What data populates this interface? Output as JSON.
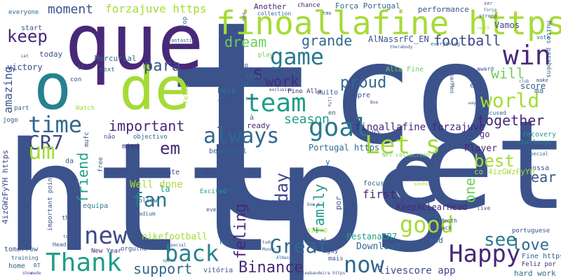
{
  "words": [
    {
      "text": "t",
      "color": "#3b528b"
    },
    {
      "text": "co",
      "color": "#3b528b"
    },
    {
      "text": "https",
      "color": "#3b528b"
    },
    {
      "text": "que",
      "color": "#482878"
    },
    {
      "text": "finoallafine https",
      "color": "#a5db36"
    },
    {
      "text": "o",
      "color": "#26828e"
    },
    {
      "text": "de",
      "color": "#a5db36"
    },
    {
      "text": "e",
      "color": "#3b528b"
    },
    {
      "text": "et",
      "color": "#3b528b"
    },
    {
      "text": "win",
      "color": "#482878"
    },
    {
      "text": "game",
      "color": "#2a788e"
    },
    {
      "text": "team",
      "color": "#1f9e89"
    },
    {
      "text": "keep",
      "color": "#482878"
    },
    {
      "text": "dream",
      "color": "#6ece58"
    },
    {
      "text": "grande",
      "color": "#31688e"
    },
    {
      "text": "football",
      "color": "#3e4a89"
    },
    {
      "text": "world",
      "color": "#a5db36"
    },
    {
      "text": "will",
      "color": "#6ece58"
    },
    {
      "text": "time",
      "color": "#31688e"
    },
    {
      "text": "goal",
      "color": "#2a788e"
    },
    {
      "text": "Let s",
      "color": "#a5db36"
    },
    {
      "text": "CR7",
      "color": "#3e4a89"
    },
    {
      "text": "always",
      "color": "#31688e"
    },
    {
      "text": "important",
      "color": "#482878"
    },
    {
      "text": "um",
      "color": "#a5db36"
    },
    {
      "text": "em",
      "color": "#482878"
    },
    {
      "text": "new",
      "color": "#3e4a89"
    },
    {
      "text": "fan",
      "color": "#2a788e"
    },
    {
      "text": "Thank",
      "color": "#1f9e89"
    },
    {
      "text": "back",
      "color": "#26828e"
    },
    {
      "text": "Great",
      "color": "#31688e"
    },
    {
      "text": "good",
      "color": "#a5db36"
    },
    {
      "text": "Happy",
      "color": "#482878"
    },
    {
      "text": "now",
      "color": "#31688e"
    },
    {
      "text": "Binance",
      "color": "#482878"
    },
    {
      "text": "see",
      "color": "#2a788e"
    },
    {
      "text": "love",
      "color": "#31688e"
    },
    {
      "text": "year",
      "color": "#3b528b"
    },
    {
      "text": "best",
      "color": "#a5db36"
    },
    {
      "text": "together",
      "color": "#482878"
    },
    {
      "text": "season",
      "color": "#1f9e89"
    },
    {
      "text": "proud",
      "color": "#31688e"
    },
    {
      "text": "work",
      "color": "#482878"
    },
    {
      "text": "para",
      "color": "#3b528b"
    },
    {
      "text": "moment",
      "color": "#3b528b"
    },
    {
      "text": "forzajuve https",
      "color": "#a5db36"
    },
    {
      "text": "amazing",
      "color": "#3b528b"
    },
    {
      "text": "friend",
      "color": "#1f9e89"
    },
    {
      "text": "day",
      "color": "#3e4a89"
    },
    {
      "text": "family",
      "color": "#1f9e89"
    },
    {
      "text": "feling",
      "color": "#482878"
    },
    {
      "text": "support",
      "color": "#31688e"
    },
    {
      "text": "s",
      "color": "#482878"
    },
    {
      "text": "one",
      "color": "#6ece58"
    },
    {
      "text": "stay",
      "color": "#3e4a89"
    },
    {
      "text": "first",
      "color": "#482878"
    },
    {
      "text": "Well done",
      "color": "#a5db36"
    },
    {
      "text": "livescore app",
      "color": "#3e4a89"
    },
    {
      "text": "Download",
      "color": "#31688e"
    },
    {
      "text": "finoallafine forzajuve",
      "color": "#482878"
    },
    {
      "text": "Portugal https",
      "color": "#31688e"
    },
    {
      "text": "Player",
      "color": "#482878"
    },
    {
      "text": "KeepAClearHead",
      "color": "#482878"
    },
    {
      "text": "PestanaCR7",
      "color": "#1f9e89"
    },
    {
      "text": "nikefootball",
      "color": "#a5db36"
    },
    {
      "text": "hard work",
      "color": "#31688e"
    },
    {
      "text": "score",
      "color": "#3b528b"
    },
    {
      "text": "AlNassrFC_EN",
      "color": "#3b528b"
    },
    {
      "text": "Força Portugal",
      "color": "#31688e"
    },
    {
      "text": "Vamos",
      "color": "#3e4a89"
    },
    {
      "text": "Another",
      "color": "#482878"
    },
    {
      "text": "performance",
      "color": "#3b528b"
    },
    {
      "text": "Mercurial",
      "color": "#31688e"
    },
    {
      "text": "victory",
      "color": "#3e4a89"
    },
    {
      "text": "today",
      "color": "#3b528b"
    },
    {
      "text": "start",
      "color": "#3b528b"
    },
    {
      "text": "everyone",
      "color": "#31688e"
    },
    {
      "text": "help",
      "color": "#2a788e"
    },
    {
      "text": "ready",
      "color": "#482878"
    },
    {
      "text": "beautiful",
      "color": "#31688e"
    },
    {
      "text": "mind",
      "color": "#482878"
    },
    {
      "text": "celebrate",
      "color": "#3e4a89"
    },
    {
      "text": "equipa",
      "color": "#2a788e"
    },
    {
      "text": "Excited",
      "color": "#1f9e89"
    },
    {
      "text": "focus",
      "color": "#31688e"
    },
    {
      "text": "recovery",
      "color": "#1f9e89"
    },
    {
      "text": "challenge",
      "color": "#26828e"
    },
    {
      "text": "nossa",
      "color": "#3b528b"
    },
    {
      "text": "muito",
      "color": "#31688e"
    },
    {
      "text": "Fino Alla",
      "color": "#482878"
    },
    {
      "text": "Alla Fine",
      "color": "#6ece58"
    },
    {
      "text": "sempre",
      "color": "#3b528b"
    },
    {
      "text": "next",
      "color": "#31688e"
    },
    {
      "text": "play",
      "color": "#6ece58"
    },
    {
      "text": "clear",
      "color": "#2a788e"
    },
    {
      "text": "tomorrow",
      "color": "#3b528b"
    },
    {
      "text": "home",
      "color": "#31688e"
    },
    {
      "text": "New Year",
      "color": "#482878"
    },
    {
      "text": "orgulho",
      "color": "#3b528b"
    },
    {
      "text": "vitória",
      "color": "#3b528b"
    },
    {
      "text": "mais",
      "color": "#3b528b"
    },
    {
      "text": "end",
      "color": "#31688e"
    },
    {
      "text": "Fine https",
      "color": "#31688e"
    },
    {
      "text": "Feliz por",
      "color": "#482878"
    },
    {
      "text": "portuguese",
      "color": "#3b528b"
    },
    {
      "text": "every",
      "color": "#3b528b"
    },
    {
      "text": "stadium",
      "color": "#31688e"
    },
    {
      "text": "training",
      "color": "#31688e"
    },
    {
      "text": "Head",
      "color": "#3b528b"
    },
    {
      "text": "4izGWzFyYH https",
      "color": "#3e4a89"
    },
    {
      "text": "co 4izGWzFyYH",
      "color": "#a5db36"
    },
    {
      "text": "SIXPAD",
      "color": "#a5db36"
    },
    {
      "text": "Month",
      "color": "#3b528b"
    },
    {
      "text": "track",
      "color": "#3b528b"
    },
    {
      "text": "live",
      "color": "#3b528b"
    },
    {
      "text": "amp",
      "color": "#3b528b"
    },
    {
      "text": "la",
      "color": "#1f9e89"
    },
    {
      "text": "un",
      "color": "#3e4a89"
    },
    {
      "text": "por",
      "color": "#3b528b"
    },
    {
      "text": "na",
      "color": "#31688e"
    },
    {
      "text": "rumo ao",
      "color": "#3b528b"
    },
    {
      "text": "NFT",
      "color": "#31688e"
    },
    {
      "text": "Feliz",
      "color": "#a5db36"
    },
    {
      "text": "con",
      "color": "#3b528b"
    },
    {
      "text": "il",
      "color": "#3b528b"
    },
    {
      "text": "top",
      "color": "#31688e"
    },
    {
      "text": "chance",
      "color": "#482878"
    },
    {
      "text": "el",
      "color": "#3b528b"
    },
    {
      "text": "ma",
      "color": "#31688e"
    },
    {
      "text": "go",
      "color": "#482878"
    },
    {
      "text": "take",
      "color": "#3b528b"
    },
    {
      "text": "NFT collection",
      "color": "#6ece58"
    },
    {
      "text": "important point",
      "color": "#3b528b"
    },
    {
      "text": "da",
      "color": "#31688e"
    },
    {
      "text": "thing",
      "color": "#3b528b"
    },
    {
      "text": "Follow",
      "color": "#31688e"
    },
    {
      "text": "mufc",
      "color": "#3b528b"
    },
    {
      "text": "free",
      "color": "#31688e"
    },
    {
      "text": "não",
      "color": "#3b528b"
    },
    {
      "text": "objectivo",
      "color": "#31688e"
    },
    {
      "text": "jogo",
      "color": "#3b528b"
    },
    {
      "text": "Watch",
      "color": "#a5db36"
    },
    {
      "text": "part",
      "color": "#31688e"
    },
    {
      "text": "y",
      "color": "#31688e"
    },
    {
      "text": "us",
      "color": "#3b528b"
    },
    {
      "text": "en",
      "color": "#3b528b"
    },
    {
      "text": "é",
      "color": "#3b528b"
    },
    {
      "text": "à",
      "color": "#31688e"
    },
    {
      "text": "guy",
      "color": "#3b528b"
    },
    {
      "text": "RT",
      "color": "#31688e"
    },
    {
      "text": "come",
      "color": "#3b528b"
    },
    {
      "text": "sonho",
      "color": "#a5db36"
    },
    {
      "text": "especial",
      "color": "#31688e"
    },
    {
      "text": "forward",
      "color": "#3b528b"
    },
    {
      "text": "focused",
      "color": "#31688e"
    },
    {
      "text": "award",
      "color": "#3b528b"
    },
    {
      "text": "vote",
      "color": "#31688e"
    },
    {
      "text": "Muitos parabéns",
      "color": "#31688e"
    },
    {
      "text": "make",
      "color": "#3b528b"
    },
    {
      "text": "club",
      "color": "#31688e"
    },
    {
      "text": "ClearMen",
      "color": "#3b528b"
    },
    {
      "text": "everything",
      "color": "#31688e"
    },
    {
      "text": "strong",
      "color": "#3b528b"
    },
    {
      "text": "reach",
      "color": "#a5db36"
    },
    {
      "text": "ser",
      "color": "#3b528b"
    },
    {
      "text": "Força",
      "color": "#31688e"
    },
    {
      "text": "tmo",
      "color": "#3b528b"
    },
    {
      "text": "collection",
      "color": "#31688e"
    },
    {
      "text": "nós",
      "color": "#3b528b"
    },
    {
      "text": "Fantastic",
      "color": "#31688e"
    },
    {
      "text": "Let",
      "color": "#3b528b"
    },
    {
      "text": "exclusive",
      "color": "#482878"
    },
    {
      "text": "train",
      "color": "#3b528b"
    },
    {
      "text": "therabody",
      "color": "#3b528b"
    },
    {
      "text": "Boa",
      "color": "#3b528b"
    },
    {
      "text": "todo",
      "color": "#3b528b"
    },
    {
      "text": "made",
      "color": "#3b528b"
    },
    {
      "text": "speed",
      "color": "#31688e"
    },
    {
      "text": "Check",
      "color": "#3b528b"
    },
    {
      "text": "special",
      "color": "#3b528b"
    },
    {
      "text": "tudo",
      "color": "#3b528b"
    },
    {
      "text": "Mundo",
      "color": "#3b528b"
    },
    {
      "text": "AlNassrFC",
      "color": "#31688e"
    },
    {
      "text": "vesteabandeira https",
      "color": "#3b528b"
    },
    {
      "text": "Don t",
      "color": "#3b528b"
    },
    {
      "text": "1st",
      "color": "#3b528b"
    },
    {
      "text": "de volta",
      "color": "#31688e"
    },
    {
      "text": "wait",
      "color": "#3b528b"
    },
    {
      "text": "share",
      "color": "#31688e"
    },
    {
      "text": "show",
      "color": "#3b528b"
    },
    {
      "text": "way",
      "color": "#3b528b"
    },
    {
      "text": "life",
      "color": "#3b528b"
    }
  ]
}
